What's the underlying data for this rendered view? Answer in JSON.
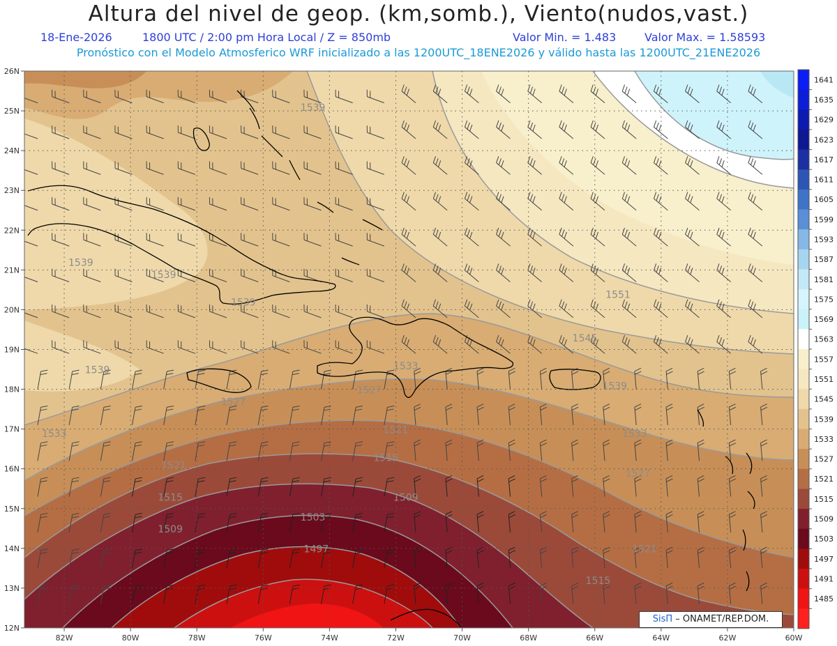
{
  "header": {
    "title": "Altura del nivel de geop. (km,somb.), Viento(nudos,vast.)",
    "date": "18-Ene-2026",
    "time": "1800 UTC / 2:00 pm Hora Local / Z = 850mb",
    "valmin": "Valor Min. = 1.483",
    "valmax": "Valor Max. = 1.58593",
    "subtitle": "Pronóstico con el Modelo Atmosferico WRF inicializado a las 1200UTC_18ENE2026 y válido hasta las  1200UTC_21ENE2026"
  },
  "map": {
    "lat_labels": [
      "26N",
      "25N",
      "24N",
      "23N",
      "22N",
      "21N",
      "20N",
      "19N",
      "18N",
      "17N",
      "16N",
      "15N",
      "14N",
      "13N",
      "12N"
    ],
    "lon_labels": [
      "82W",
      "80W",
      "78W",
      "76W",
      "74W",
      "72W",
      "70W",
      "68W",
      "66W",
      "64W",
      "62W",
      "60W"
    ],
    "contour_labels": [
      {
        "text": "1539",
        "lon": -74.5,
        "lat": 25.0
      },
      {
        "text": "1539",
        "lon": -81.5,
        "lat": 21.1
      },
      {
        "text": "1539",
        "lon": -79.0,
        "lat": 20.8
      },
      {
        "text": "1539",
        "lon": -76.6,
        "lat": 20.1
      },
      {
        "text": "1539",
        "lon": -81.0,
        "lat": 18.4
      },
      {
        "text": "1539",
        "lon": -65.4,
        "lat": 18.0
      },
      {
        "text": "1545",
        "lon": -66.3,
        "lat": 19.2
      },
      {
        "text": "1551",
        "lon": -65.3,
        "lat": 20.3
      },
      {
        "text": "1533",
        "lon": -82.3,
        "lat": 16.8
      },
      {
        "text": "1533",
        "lon": -71.7,
        "lat": 18.5
      },
      {
        "text": "1533",
        "lon": -64.8,
        "lat": 16.8
      },
      {
        "text": "1527",
        "lon": -76.9,
        "lat": 17.6
      },
      {
        "text": "1527",
        "lon": -72.8,
        "lat": 17.9
      },
      {
        "text": "1527",
        "lon": -64.7,
        "lat": 15.8
      },
      {
        "text": "1521",
        "lon": -78.7,
        "lat": 16.0
      },
      {
        "text": "1521",
        "lon": -72.0,
        "lat": 16.9
      },
      {
        "text": "1521",
        "lon": -64.5,
        "lat": 13.9
      },
      {
        "text": "1515",
        "lon": -78.8,
        "lat": 15.2
      },
      {
        "text": "1515",
        "lon": -72.3,
        "lat": 16.2
      },
      {
        "text": "1515",
        "lon": -65.9,
        "lat": 13.1
      },
      {
        "text": "1509",
        "lon": -78.8,
        "lat": 14.4
      },
      {
        "text": "1509",
        "lon": -71.7,
        "lat": 15.2
      },
      {
        "text": "1503",
        "lon": -74.5,
        "lat": 14.7
      },
      {
        "text": "1497",
        "lon": -74.4,
        "lat": 13.9
      }
    ]
  },
  "colorbar": {
    "labels": [
      "1641",
      "1635",
      "1629",
      "1623",
      "1617",
      "1611",
      "1605",
      "1599",
      "1593",
      "1587",
      "1581",
      "1575",
      "1569",
      "1563",
      "1557",
      "1551",
      "1545",
      "1539",
      "1533",
      "1527",
      "1521",
      "1515",
      "1509",
      "1503",
      "1497",
      "1491",
      "1485"
    ],
    "colors": [
      "#0a1ef5",
      "#0d1fd6",
      "#0c1ab2",
      "#0e1891",
      "#1c2fa3",
      "#2d55b5",
      "#3e73c8",
      "#5a8fd6",
      "#86b8e6",
      "#a6d6ef",
      "#c4e9f6",
      "#d6f4fb",
      "#c9f2fa",
      "#ffffff",
      "#f8efcc",
      "#f5e7c0",
      "#efd9aa",
      "#e3c38d",
      "#d8ac73",
      "#c78f57",
      "#b56e44",
      "#9b4a3a",
      "#80202e",
      "#6a0a1c",
      "#a00c0c",
      "#cc1010",
      "#f01414",
      "#ff2020"
    ]
  },
  "credit": {
    "brand": "SisΠ",
    "text": "– ONAMET/REP.DOM."
  }
}
